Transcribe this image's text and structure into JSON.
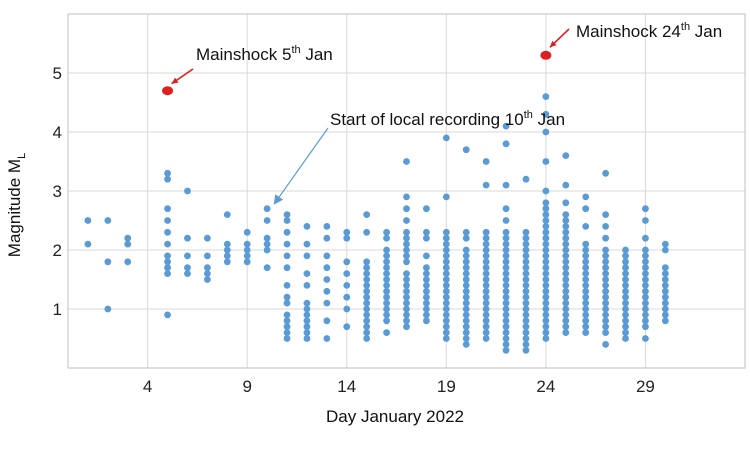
{
  "chart_data": {
    "type": "scatter",
    "xlabel": "Day January 2022",
    "ylabel": "Magnitude M",
    "ylabel_sub": "L",
    "xlim": [
      0,
      34
    ],
    "ylim": [
      0,
      6
    ],
    "xticks": [
      4,
      9,
      14,
      19,
      24,
      29
    ],
    "yticks": [
      1,
      2,
      3,
      4,
      5
    ],
    "grid": true,
    "colors": {
      "points": "#5b9bd5",
      "mainshock": "#e02020",
      "arrow_local": "#5b9bd5",
      "arrow_main": "#e02020",
      "grid": "#d9d9d9"
    },
    "mainshocks": [
      {
        "x": 5,
        "y": 4.7
      },
      {
        "x": 24,
        "y": 5.3
      }
    ],
    "annotations": [
      {
        "id": "ms5",
        "text": "Mainshock 5",
        "sup": "th",
        "tail": " Jan"
      },
      {
        "id": "ms24",
        "text": "Mainshock 24",
        "sup": "th",
        "tail": " Jan"
      },
      {
        "id": "local",
        "text": "Start of local recording 10",
        "sup": "th",
        "tail": " Jan"
      }
    ],
    "series": [
      {
        "x": 1,
        "values": [
          2.5,
          2.1
        ]
      },
      {
        "x": 2,
        "values": [
          2.5,
          1.8,
          1.0
        ]
      },
      {
        "x": 3,
        "values": [
          2.2,
          2.1,
          1.8
        ]
      },
      {
        "x": 5,
        "values": [
          3.3,
          3.2,
          2.7,
          2.5,
          2.3,
          2.1,
          1.9,
          1.8,
          1.7,
          1.6,
          0.9
        ]
      },
      {
        "x": 6,
        "values": [
          3.0,
          2.2,
          1.9,
          1.7,
          1.6
        ]
      },
      {
        "x": 7,
        "values": [
          2.2,
          1.9,
          1.7,
          1.6,
          1.5
        ]
      },
      {
        "x": 8,
        "values": [
          2.6,
          2.1,
          2.0,
          1.9,
          1.8
        ]
      },
      {
        "x": 9,
        "values": [
          2.3,
          2.1,
          2.0,
          1.9,
          1.8
        ]
      },
      {
        "x": 10,
        "values": [
          2.7,
          2.5,
          2.2,
          2.1,
          2.0,
          1.7
        ]
      },
      {
        "x": 11,
        "values": [
          2.6,
          2.5,
          2.3,
          2.1,
          1.9,
          1.7,
          1.4,
          1.2,
          1.1,
          0.9,
          0.8,
          0.7,
          0.6,
          0.5
        ]
      },
      {
        "x": 12,
        "values": [
          2.4,
          2.1,
          1.9,
          1.6,
          1.4,
          1.1,
          1.0,
          0.9,
          0.8,
          0.7,
          0.6,
          0.5
        ]
      },
      {
        "x": 13,
        "values": [
          2.4,
          2.2,
          1.9,
          1.7,
          1.5,
          1.3,
          1.1,
          0.8,
          0.5
        ]
      },
      {
        "x": 14,
        "values": [
          2.3,
          2.2,
          1.8,
          1.6,
          1.4,
          1.2,
          1.0,
          0.7
        ]
      },
      {
        "x": 15,
        "values": [
          2.6,
          2.3,
          1.8,
          1.7,
          1.6,
          1.5,
          1.4,
          1.3,
          1.2,
          1.1,
          1.0,
          0.9,
          0.8,
          0.7,
          0.6,
          0.5
        ]
      },
      {
        "x": 16,
        "values": [
          2.3,
          2.2,
          2.0,
          1.9,
          1.8,
          1.7,
          1.6,
          1.5,
          1.4,
          1.3,
          1.2,
          1.1,
          1.0,
          0.9,
          0.8,
          0.6
        ]
      },
      {
        "x": 17,
        "values": [
          3.5,
          2.9,
          2.7,
          2.5,
          2.3,
          2.2,
          2.1,
          2.0,
          1.9,
          1.8,
          1.6,
          1.5,
          1.4,
          1.3,
          1.2,
          1.1,
          1.0,
          0.9,
          0.8,
          0.7
        ]
      },
      {
        "x": 18,
        "values": [
          2.7,
          2.3,
          2.2,
          1.9,
          1.7,
          1.6,
          1.5,
          1.4,
          1.3,
          1.2,
          1.1,
          1.0,
          0.9,
          0.8
        ]
      },
      {
        "x": 19,
        "values": [
          3.9,
          2.9,
          2.3,
          2.2,
          2.1,
          2.0,
          1.9,
          1.8,
          1.7,
          1.6,
          1.5,
          1.4,
          1.3,
          1.2,
          1.1,
          1.0,
          0.9,
          0.8,
          0.7,
          0.6,
          0.5
        ]
      },
      {
        "x": 20,
        "values": [
          3.7,
          2.3,
          2.2,
          2.0,
          1.9,
          1.8,
          1.7,
          1.6,
          1.5,
          1.4,
          1.3,
          1.2,
          1.1,
          1.0,
          0.9,
          0.8,
          0.7,
          0.6,
          0.5,
          0.4
        ]
      },
      {
        "x": 21,
        "values": [
          3.5,
          3.1,
          2.3,
          2.2,
          2.1,
          2.0,
          1.9,
          1.8,
          1.7,
          1.6,
          1.5,
          1.4,
          1.3,
          1.2,
          1.1,
          1.0,
          0.9,
          0.8,
          0.7,
          0.6,
          0.5
        ]
      },
      {
        "x": 22,
        "values": [
          4.1,
          3.8,
          3.1,
          2.7,
          2.5,
          2.3,
          2.2,
          2.1,
          2.0,
          1.9,
          1.8,
          1.7,
          1.6,
          1.5,
          1.4,
          1.3,
          1.2,
          1.1,
          1.0,
          0.9,
          0.8,
          0.7,
          0.6,
          0.5,
          0.4,
          0.3
        ]
      },
      {
        "x": 23,
        "values": [
          3.2,
          2.3,
          2.2,
          2.1,
          2.0,
          1.9,
          1.8,
          1.7,
          1.6,
          1.5,
          1.4,
          1.3,
          1.2,
          1.1,
          1.0,
          0.9,
          0.8,
          0.7,
          0.6,
          0.5,
          0.4,
          0.3
        ]
      },
      {
        "x": 24,
        "values": [
          4.6,
          4.3,
          4.0,
          3.5,
          3.0,
          2.8,
          2.7,
          2.6,
          2.5,
          2.4,
          2.3,
          2.2,
          2.1,
          2.0,
          1.9,
          1.8,
          1.7,
          1.6,
          1.5,
          1.4,
          1.3,
          1.2,
          1.1,
          1.0,
          0.9,
          0.8,
          0.7,
          0.6,
          0.5
        ]
      },
      {
        "x": 25,
        "values": [
          3.6,
          3.1,
          2.8,
          2.6,
          2.5,
          2.4,
          2.3,
          2.2,
          2.1,
          2.0,
          1.9,
          1.8,
          1.7,
          1.6,
          1.5,
          1.4,
          1.3,
          1.2,
          1.1,
          1.0,
          0.9,
          0.8,
          0.7,
          0.6
        ]
      },
      {
        "x": 26,
        "values": [
          2.9,
          2.7,
          2.4,
          2.1,
          2.0,
          1.9,
          1.8,
          1.7,
          1.6,
          1.5,
          1.4,
          1.3,
          1.2,
          1.1,
          1.0,
          0.9,
          0.8,
          0.7,
          0.6
        ]
      },
      {
        "x": 27,
        "values": [
          3.3,
          2.6,
          2.4,
          2.2,
          2.0,
          1.9,
          1.8,
          1.7,
          1.6,
          1.5,
          1.4,
          1.3,
          1.2,
          1.1,
          1.0,
          0.9,
          0.8,
          0.7,
          0.6,
          0.4
        ]
      },
      {
        "x": 28,
        "values": [
          2.0,
          1.9,
          1.8,
          1.7,
          1.6,
          1.5,
          1.4,
          1.3,
          1.2,
          1.1,
          1.0,
          0.9,
          0.8,
          0.7,
          0.6,
          0.5
        ]
      },
      {
        "x": 29,
        "values": [
          2.7,
          2.5,
          2.2,
          2.0,
          1.9,
          1.8,
          1.7,
          1.6,
          1.5,
          1.4,
          1.3,
          1.2,
          1.1,
          1.0,
          0.9,
          0.8,
          0.7,
          0.5
        ]
      },
      {
        "x": 30,
        "values": [
          2.1,
          2.0,
          1.7,
          1.6,
          1.5,
          1.4,
          1.3,
          1.2,
          1.1,
          1.0,
          0.9,
          0.8
        ]
      }
    ]
  }
}
